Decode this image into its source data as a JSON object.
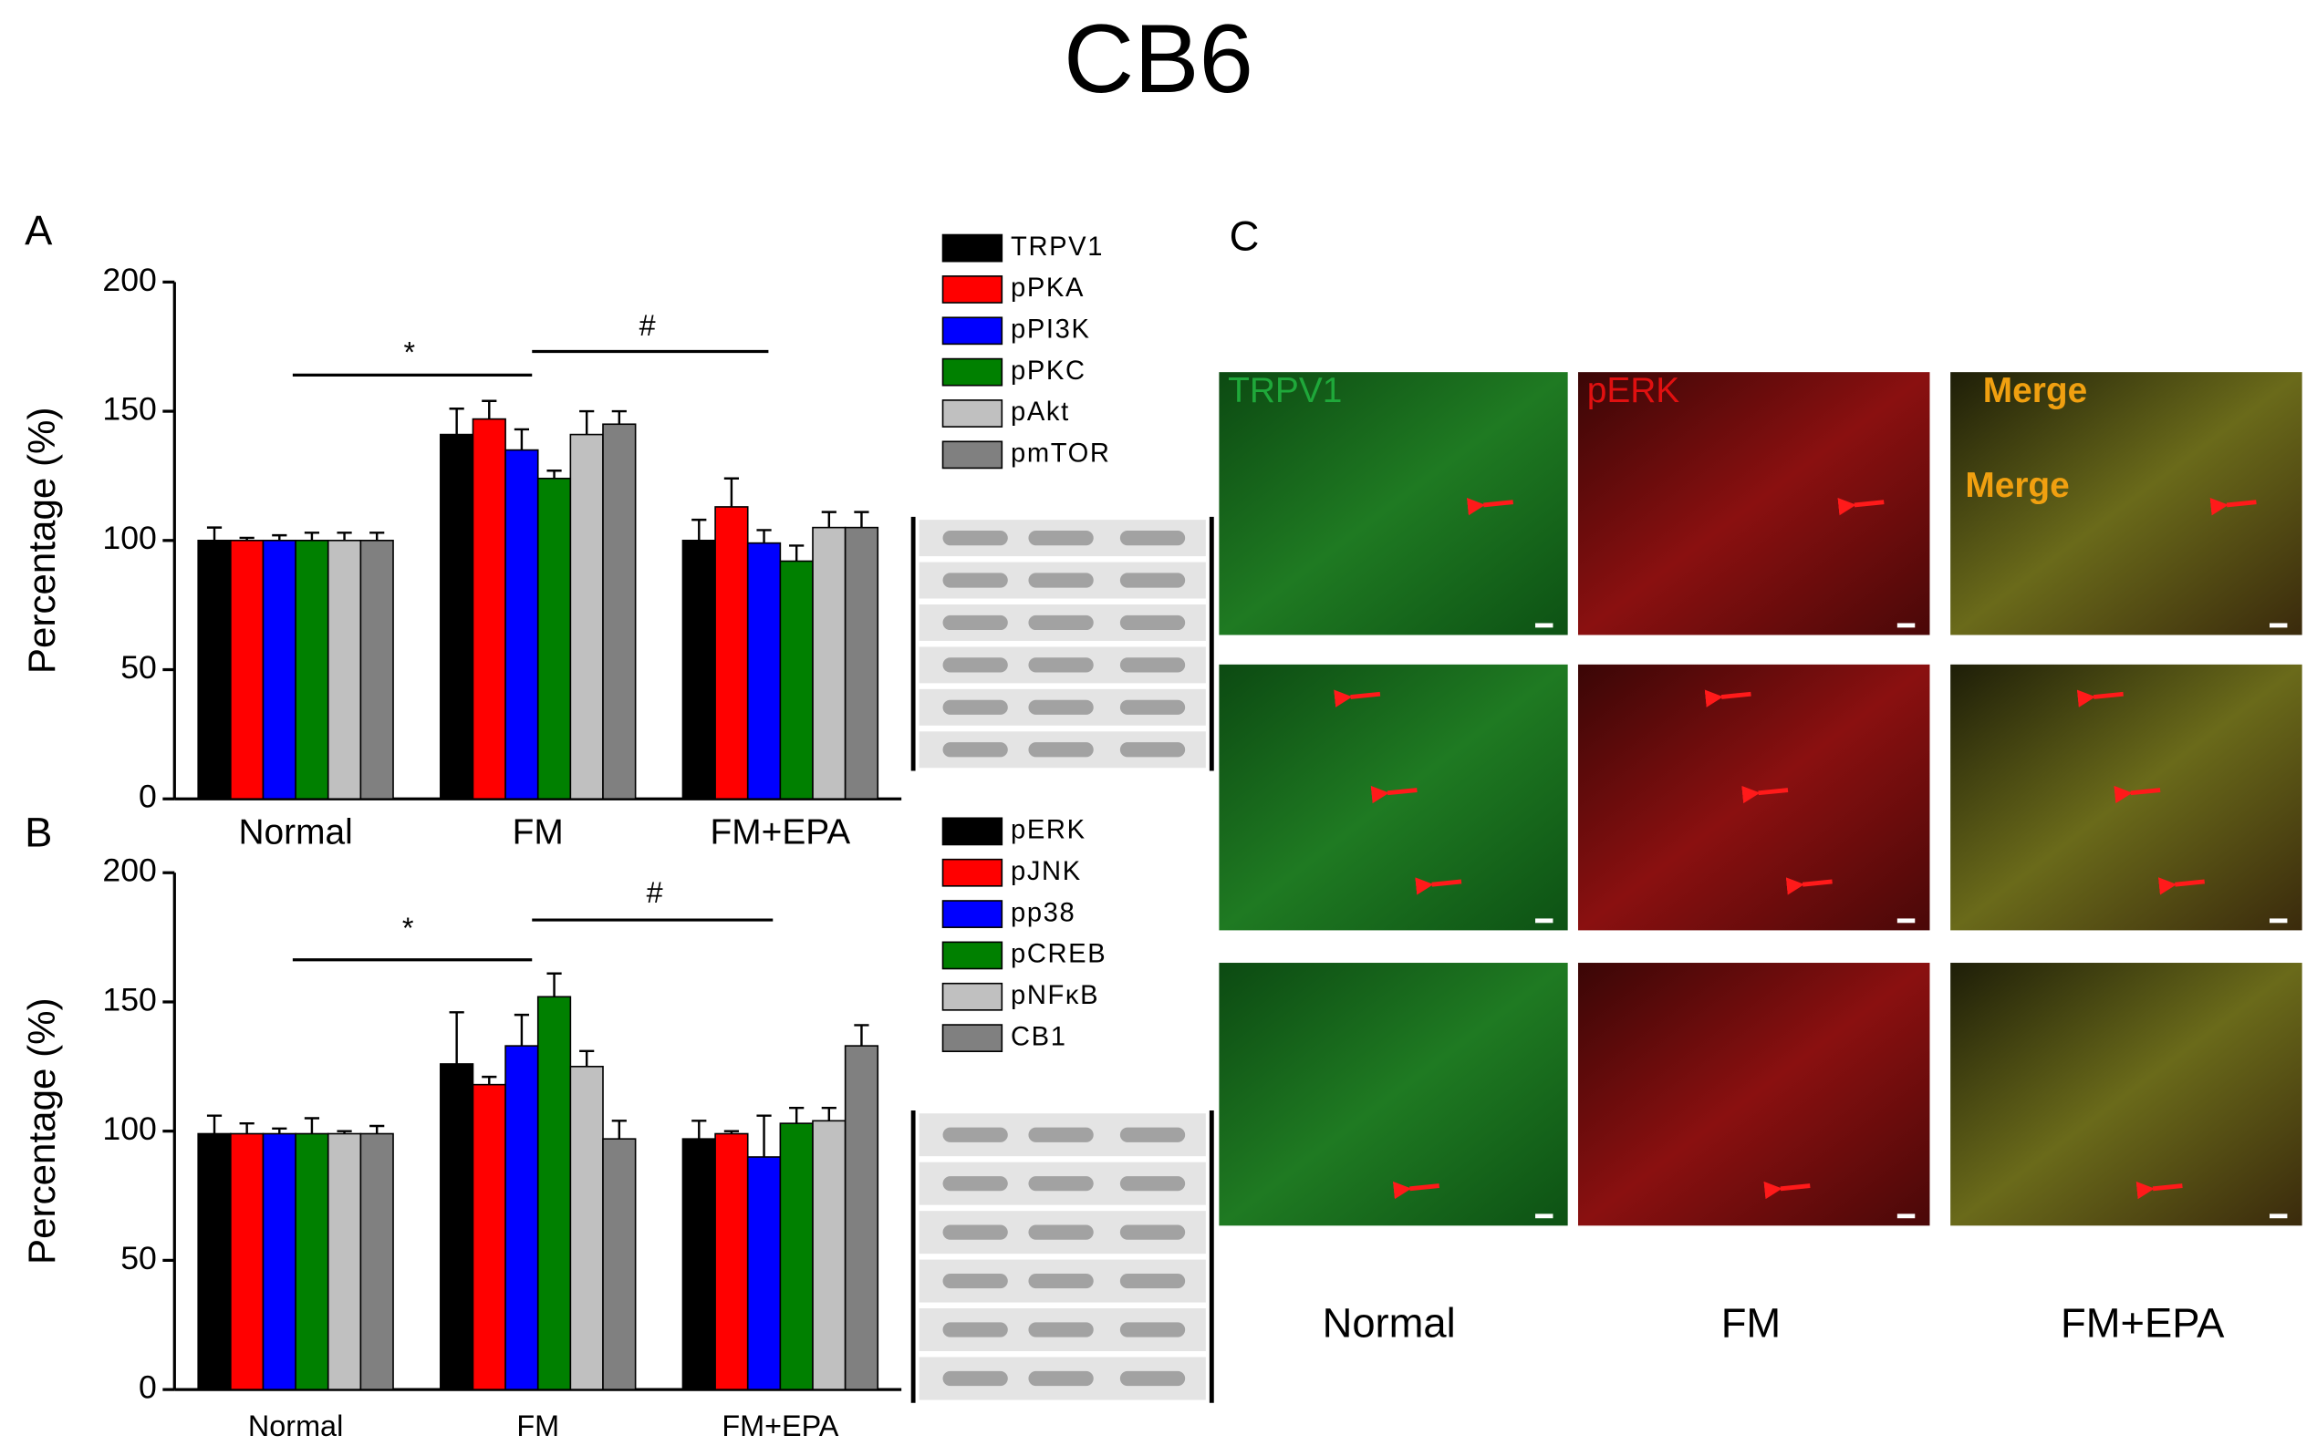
{
  "title": "CB6",
  "chart_data": [
    {
      "type": "bar",
      "panel": "A",
      "ylabel": "Percentage (%)",
      "categories": [
        "Normal",
        "FM",
        "FM+EPA"
      ],
      "ylim": [
        0,
        200
      ],
      "yticks": [
        0,
        50,
        100,
        150,
        200
      ],
      "annotations": [
        "*",
        "#"
      ],
      "series": [
        {
          "name": "TRPV1",
          "color": "#000000",
          "values": [
            100,
            141,
            100
          ],
          "errors": [
            5,
            10,
            8
          ]
        },
        {
          "name": "pPKA",
          "color": "#ff0000",
          "values": [
            100,
            147,
            113
          ],
          "errors": [
            1,
            7,
            11
          ]
        },
        {
          "name": "pPI3K",
          "color": "#0000ff",
          "values": [
            100,
            135,
            99
          ],
          "errors": [
            2,
            8,
            5
          ]
        },
        {
          "name": "pPKC",
          "color": "#008000",
          "values": [
            100,
            124,
            92
          ],
          "errors": [
            3,
            3,
            6
          ]
        },
        {
          "name": "pAkt",
          "color": "#c0c0c0",
          "values": [
            100,
            141,
            105
          ],
          "errors": [
            3,
            9,
            6
          ]
        },
        {
          "name": "pmTOR",
          "color": "#808080",
          "values": [
            100,
            145,
            105
          ],
          "errors": [
            3,
            5,
            6
          ]
        }
      ]
    },
    {
      "type": "bar",
      "panel": "B",
      "ylabel": "Percentage (%)",
      "categories": [
        "Normal",
        "FM",
        "FM+EPA"
      ],
      "ylim": [
        0,
        200
      ],
      "yticks": [
        0,
        50,
        100,
        150,
        200
      ],
      "annotations": [
        "*",
        "#"
      ],
      "series": [
        {
          "name": "pERK",
          "color": "#000000",
          "values": [
            99,
            126,
            97
          ],
          "errors": [
            7,
            20,
            7
          ]
        },
        {
          "name": "pJNK",
          "color": "#ff0000",
          "values": [
            99,
            118,
            99
          ],
          "errors": [
            4,
            3,
            1
          ]
        },
        {
          "name": "pp38",
          "color": "#0000ff",
          "values": [
            99,
            133,
            90
          ],
          "errors": [
            2,
            12,
            16
          ]
        },
        {
          "name": "pCREB",
          "color": "#008000",
          "values": [
            99,
            152,
            103
          ],
          "errors": [
            6,
            9,
            6
          ]
        },
        {
          "name": "pNFκB",
          "color": "#c0c0c0",
          "values": [
            99,
            125,
            104
          ],
          "errors": [
            1,
            6,
            5
          ]
        },
        {
          "name": "CB1",
          "color": "#808080",
          "values": [
            99,
            97,
            133
          ],
          "errors": [
            3,
            7,
            8
          ]
        }
      ]
    }
  ],
  "panel_c": {
    "panel": "C",
    "channels": [
      "TRPV1",
      "pERK",
      "Merge"
    ],
    "extra_label": "Merge",
    "groups": [
      "Normal",
      "FM",
      "FM+EPA"
    ]
  }
}
